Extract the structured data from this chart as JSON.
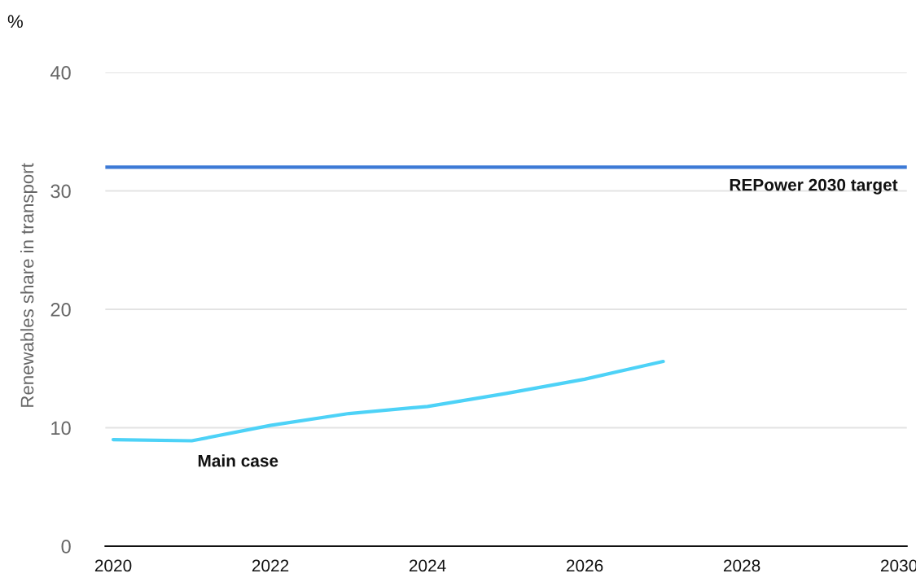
{
  "chart_data": {
    "type": "line",
    "ylabel": "Renewables share in transport",
    "annotations": [
      {
        "text": "%"
      }
    ],
    "x": [
      2020,
      2021,
      2022,
      2023,
      2024,
      2025,
      2026,
      2027
    ],
    "series": [
      {
        "name": "Main case",
        "color": "#4dd2f7",
        "values": [
          9.0,
          8.9,
          10.2,
          11.2,
          11.8,
          12.9,
          14.1,
          15.6
        ]
      }
    ],
    "ref_lines": [
      {
        "axis": "y",
        "value": 32,
        "label": "REPower 2030 target",
        "color": "#3d7ad6",
        "line_style": "solid"
      }
    ],
    "xlim": [
      2019.9,
      2030.1
    ],
    "xticks": [
      2020,
      2022,
      2024,
      2026,
      2028,
      2030
    ],
    "ylim": [
      0,
      40
    ],
    "yticks": [
      0,
      10,
      20,
      30,
      40
    ],
    "grid": "y",
    "legend": false,
    "marker": "none",
    "line_style": "solid"
  }
}
